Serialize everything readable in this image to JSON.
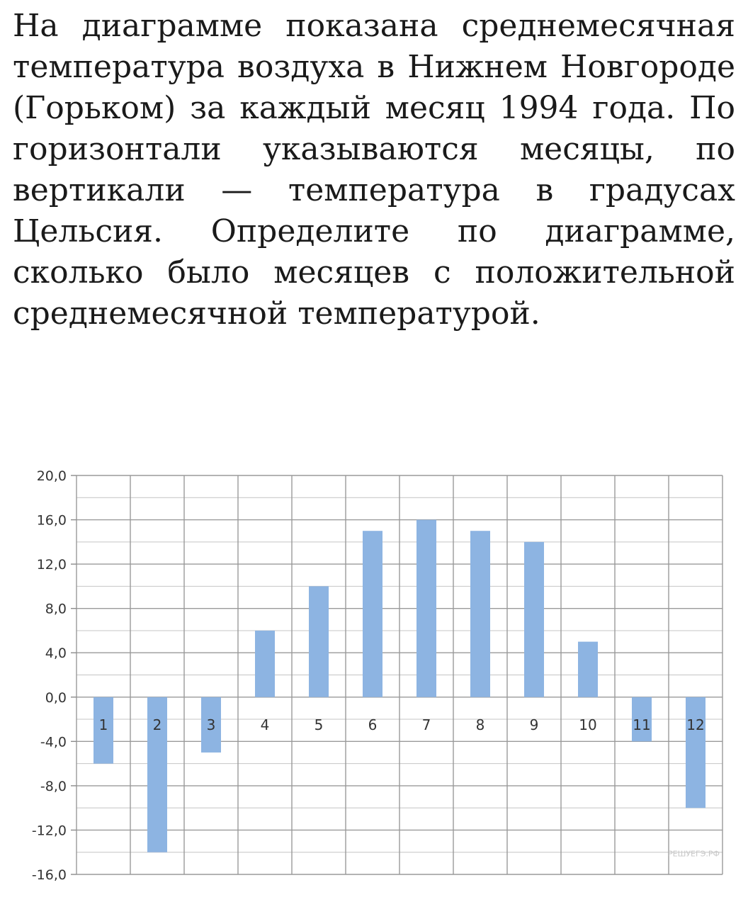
{
  "problem": {
    "text": "На диаграмме показана среднемесячная температура воздуха в Нижнем Новгороде (Горьком) за каждый месяц 1994 года. По горизонтали указываются месяцы, по вертикали — температура в градусах Цельсия. Определите по диаграмме, сколько было месяцев с положительной среднемесячной температурой."
  },
  "chart_data": {
    "type": "bar",
    "categories": [
      "1",
      "2",
      "3",
      "4",
      "5",
      "6",
      "7",
      "8",
      "9",
      "10",
      "11",
      "12"
    ],
    "values": [
      -6,
      -14,
      -5,
      6,
      10,
      15,
      16,
      15,
      14,
      5,
      -4,
      -10
    ],
    "ylim": [
      -16,
      20
    ],
    "yticks": [
      "20,0",
      "16,0",
      "12,0",
      "8,0",
      "4,0",
      "0,0",
      "-4,0",
      "-8,0",
      "-12,0",
      "-16,0"
    ],
    "minor_step": 2,
    "grid": true,
    "bar_color": "#8db4e2",
    "watermark": "РЕШУЕГЭ.РФ"
  }
}
